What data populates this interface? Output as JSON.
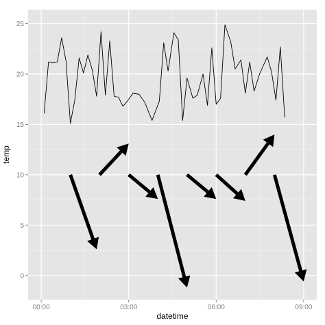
{
  "chart_data": {
    "type": "line",
    "xlabel": "datetime",
    "ylabel": "temp",
    "x_tick_labels": [
      "00:00",
      "03:00",
      "06:00",
      "09:00"
    ],
    "x_tick_values": [
      0,
      3,
      6,
      9
    ],
    "y_tick_labels": [
      "0",
      "5",
      "10",
      "15",
      "20",
      "25"
    ],
    "y_tick_values": [
      0,
      5,
      10,
      15,
      20,
      25
    ],
    "xlim": [
      -0.45,
      9.45
    ],
    "ylim": [
      -2.4,
      26.4
    ],
    "grid": true,
    "colors": {
      "panel": "#e5e5e5",
      "grid_major": "#ffffff",
      "grid_minor": "#f2f2f2",
      "line": "#000000",
      "tick_label": "#7f7f7f"
    },
    "series": [
      {
        "x": [
          0.1,
          0.25,
          0.4,
          0.55,
          0.7,
          0.85,
          1.0,
          1.15,
          1.3,
          1.45,
          1.6,
          1.75,
          1.9,
          2.05,
          2.2,
          2.35,
          2.5,
          2.65,
          2.8,
          2.95,
          3.15,
          3.35,
          3.55,
          3.8,
          4.05,
          4.2,
          4.35,
          4.55,
          4.7,
          4.85,
          5.0,
          5.2,
          5.35,
          5.55,
          5.7,
          5.85,
          6.0,
          6.15,
          6.3,
          6.5,
          6.65,
          6.85,
          7.0,
          7.15,
          7.3,
          7.5,
          7.75,
          7.9,
          8.05,
          8.2,
          8.35
        ],
        "values": [
          16.1,
          21.2,
          21.1,
          21.2,
          23.6,
          21.3,
          15.1,
          17.4,
          21.6,
          20.1,
          21.9,
          20.4,
          17.8,
          24.2,
          17.9,
          23.3,
          17.8,
          17.7,
          16.8,
          17.3,
          18.1,
          18.0,
          17.2,
          15.4,
          17.3,
          23.1,
          20.3,
          24.1,
          23.4,
          15.4,
          19.6,
          17.6,
          17.9,
          20.0,
          16.9,
          22.6,
          17.0,
          17.6,
          24.9,
          23.2,
          20.5,
          21.4,
          18.1,
          21.2,
          18.3,
          20.1,
          21.7,
          20.2,
          17.4,
          22.7,
          15.7
        ]
      }
    ],
    "arrows": [
      {
        "from": [
          1.0,
          10.0
        ],
        "to": [
          1.9,
          2.6
        ]
      },
      {
        "from": [
          2.0,
          10.0
        ],
        "to": [
          3.0,
          13.1
        ]
      },
      {
        "from": [
          3.0,
          10.0
        ],
        "to": [
          4.0,
          7.6
        ]
      },
      {
        "from": [
          4.0,
          10.0
        ],
        "to": [
          5.0,
          -1.2
        ]
      },
      {
        "from": [
          5.0,
          10.0
        ],
        "to": [
          6.0,
          7.6
        ]
      },
      {
        "from": [
          6.0,
          10.0
        ],
        "to": [
          7.0,
          7.4
        ]
      },
      {
        "from": [
          7.0,
          10.0
        ],
        "to": [
          8.0,
          14.0
        ]
      },
      {
        "from": [
          8.0,
          10.0
        ],
        "to": [
          9.0,
          -0.6
        ]
      }
    ]
  }
}
